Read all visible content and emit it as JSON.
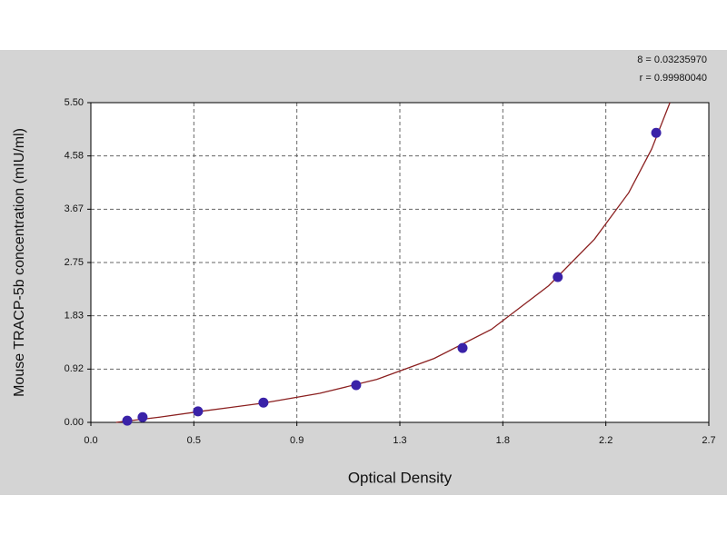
{
  "chart_data": {
    "type": "scatter",
    "x_label": "Optical Density",
    "y_label": "Mouse TRACP-5b  concentration (mIU/ml)",
    "annotations": [
      "8 = 0.03235970",
      "r = 0.99980040"
    ],
    "x": [
      0.159,
      0.226,
      0.468,
      0.754,
      1.159,
      1.624,
      2.04,
      2.47
    ],
    "series": [
      {
        "color": "#3a22a8",
        "values": [
          0.03,
          0.09,
          0.19,
          0.34,
          0.64,
          1.28,
          2.5,
          4.98
        ]
      }
    ],
    "fit_curve": {
      "color": "#8b2020",
      "x": [
        0.11,
        0.3,
        0.5,
        0.75,
        1.0,
        1.25,
        1.5,
        1.75,
        2.0,
        2.2,
        2.35,
        2.45,
        2.53
      ],
      "y": [
        0,
        0.09,
        0.2,
        0.33,
        0.5,
        0.74,
        1.1,
        1.6,
        2.35,
        3.15,
        3.95,
        4.7,
        5.5
      ]
    },
    "xlim": [
      0,
      2.7
    ],
    "xticks": [
      {
        "value": 0,
        "label": "0.0"
      },
      {
        "value": 0.45,
        "label": "0.5"
      },
      {
        "value": 0.9,
        "label": "0.9"
      },
      {
        "value": 1.35,
        "label": "1.3"
      },
      {
        "value": 1.8,
        "label": "1.8"
      },
      {
        "value": 2.25,
        "label": "2.2"
      },
      {
        "value": 2.7,
        "label": "2.7"
      }
    ],
    "ylim": [
      0,
      5.5
    ],
    "yticks": [
      {
        "value": 0,
        "label": "0.00"
      },
      {
        "value": 0.9167,
        "label": "0.92"
      },
      {
        "value": 1.8333,
        "label": "1.83"
      },
      {
        "value": 2.75,
        "label": "2.75"
      },
      {
        "value": 3.6667,
        "label": "3.67"
      },
      {
        "value": 4.5833,
        "label": "4.58"
      },
      {
        "value": 5.5,
        "label": "5.50"
      }
    ],
    "grid": true
  }
}
